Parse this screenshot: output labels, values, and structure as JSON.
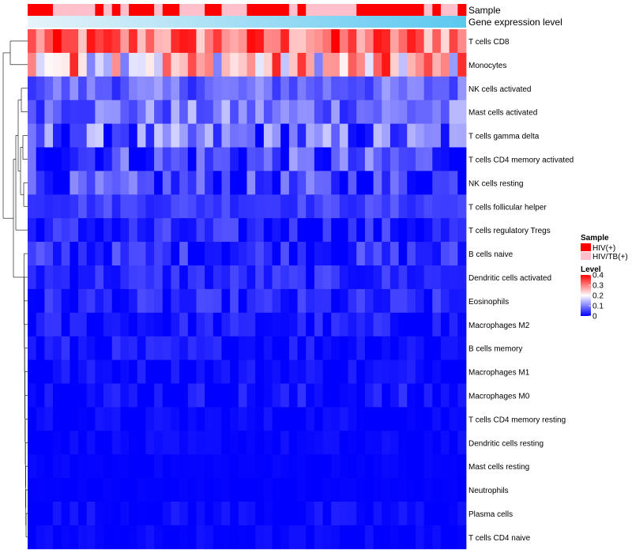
{
  "chart_data": {
    "type": "heatmap",
    "title": "",
    "annotation_labels": {
      "sample": "Sample",
      "expression": "Gene expression level"
    },
    "sample_groups": [
      "HIV(+)",
      "HIV/TB(+)"
    ],
    "sample_colors": {
      "HIV(+)": "#ff0000",
      "HIV/TB(+)": "#ffc0cb"
    },
    "sample_assignment": [
      0,
      0,
      0,
      1,
      1,
      1,
      1,
      1,
      0,
      1,
      0,
      1,
      0,
      0,
      0,
      1,
      0,
      0,
      1,
      1,
      1,
      0,
      0,
      1,
      1,
      1,
      0,
      0,
      0,
      0,
      0,
      1,
      0,
      1,
      1,
      1,
      1,
      1,
      1,
      0,
      0,
      0,
      0,
      0,
      0,
      0,
      0,
      1,
      0,
      1,
      1,
      0
    ],
    "expression_gradient": [
      "#e6f3fa",
      "#5bc8f0"
    ],
    "row_labels": [
      "T cells CD8",
      "Monocytes",
      "NK cells activated",
      "Mast cells activated",
      "T cells gamma delta",
      "T cells CD4 memory activated",
      "NK cells resting",
      "T cells follicular helper",
      "T cells regulatory  Tregs",
      "B cells naive",
      "Dendritic cells activated",
      "Eosinophils",
      "Macrophages M2",
      "B cells memory",
      "Macrophages M1",
      "Macrophages M0",
      "T cells CD4 memory resting",
      "Dendritic cells resting",
      "Mast cells resting",
      "Neutrophils",
      "Plasma cells",
      "T cells CD4 naive"
    ],
    "row_means": [
      0.31,
      0.24,
      0.08,
      0.09,
      0.07,
      0.05,
      0.04,
      0.05,
      0.02,
      0.03,
      0.03,
      0.02,
      0.015,
      0.012,
      0.008,
      0.01,
      0.004,
      0.003,
      0.002,
      0.001,
      0.006,
      0.003
    ],
    "row_noise": [
      0.06,
      0.09,
      0.03,
      0.04,
      0.06,
      0.05,
      0.045,
      0.015,
      0.03,
      0.03,
      0.02,
      0.025,
      0.02,
      0.02,
      0.015,
      0.02,
      0.01,
      0.008,
      0.004,
      0.002,
      0.012,
      0.008
    ],
    "n_samples": 52,
    "legend": {
      "sample_title": "Sample",
      "level_title": "Level",
      "level_ticks": [
        0.4,
        0.3,
        0.2,
        0.1,
        0
      ],
      "value_range": [
        0,
        0.4
      ],
      "colors": {
        "low": "#0000ff",
        "mid": "#ffffff",
        "high": "#ff0000"
      }
    }
  }
}
